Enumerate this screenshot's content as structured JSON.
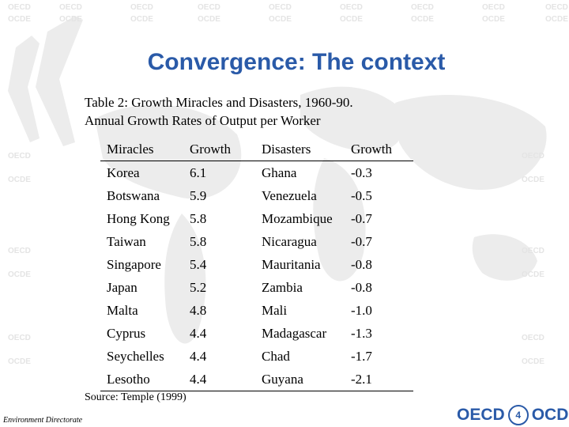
{
  "slide": {
    "title": "Convergence: The context",
    "caption_line1": "Table 2: Growth Miracles and Disasters, 1960-90.",
    "caption_line2": "Annual Growth Rates of Output per Worker"
  },
  "table": {
    "headers": [
      "Miracles",
      "Growth",
      "Disasters",
      "Growth"
    ],
    "rows": [
      [
        "Korea",
        "6.1",
        "Ghana",
        "-0.3"
      ],
      [
        "Botswana",
        "5.9",
        "Venezuela",
        "-0.5"
      ],
      [
        "Hong Kong",
        "5.8",
        "Mozambique",
        "-0.7"
      ],
      [
        "Taiwan",
        "5.8",
        "Nicaragua",
        "-0.7"
      ],
      [
        "Singapore",
        "5.4",
        "Mauritania",
        "-0.8"
      ],
      [
        "Japan",
        "5.2",
        "Zambia",
        "-0.8"
      ],
      [
        "Malta",
        "4.8",
        "Mali",
        "-1.0"
      ],
      [
        "Cyprus",
        "4.4",
        "Madagascar",
        "-1.3"
      ],
      [
        "Seychelles",
        "4.4",
        "Chad",
        "-1.7"
      ],
      [
        "Lesotho",
        "4.4",
        "Guyana",
        "-2.1"
      ]
    ]
  },
  "source": "Source: Temple (1999)",
  "footer": {
    "directorate": "Environment Directorate",
    "logo_left": "OECD",
    "page_number": "4",
    "logo_right": "OCDE"
  },
  "colors": {
    "title": "#2a5aa8",
    "watermark": "#e4e4e4"
  },
  "icons": {
    "watermark": "world-map-oecd-watermark-icon",
    "guillemets": "double-chevron-icon"
  }
}
